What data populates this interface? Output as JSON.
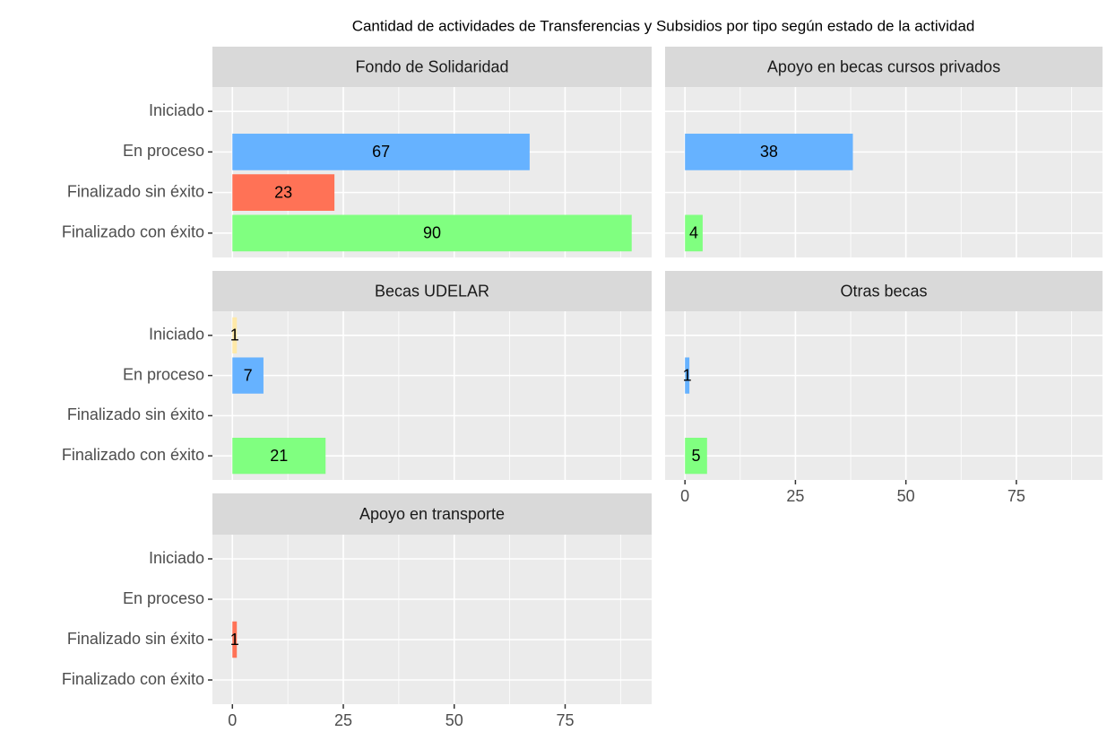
{
  "title": "Cantidad de actividades de Transferencias y Subsidios por tipo según estado de la actividad",
  "chart_data": [
    {
      "type": "bar",
      "title": "Fondo de Solidaridad",
      "categories": [
        "Iniciado",
        "En proceso",
        "Finalizado sin éxito",
        "Finalizado con éxito"
      ],
      "values": [
        null,
        67,
        23,
        90
      ],
      "colors": [
        "#FFE9A8",
        "#66B2FF",
        "#FF7256",
        "#80FF80"
      ],
      "xlim": [
        -4.5,
        94.5
      ],
      "xticks": [
        0,
        25,
        50,
        75
      ],
      "grid": true
    },
    {
      "type": "bar",
      "title": "Apoyo en becas cursos privados",
      "categories": [
        "Iniciado",
        "En proceso",
        "Finalizado sin éxito",
        "Finalizado con éxito"
      ],
      "values": [
        null,
        38,
        null,
        4
      ],
      "colors": [
        "#FFE9A8",
        "#66B2FF",
        "#FF7256",
        "#80FF80"
      ],
      "xlim": [
        -4.5,
        94.5
      ],
      "xticks": [
        0,
        25,
        50,
        75
      ],
      "grid": true
    },
    {
      "type": "bar",
      "title": "Becas UDELAR",
      "categories": [
        "Iniciado",
        "En proceso",
        "Finalizado sin éxito",
        "Finalizado con éxito"
      ],
      "values": [
        1,
        7,
        null,
        21
      ],
      "colors": [
        "#FFE9A8",
        "#66B2FF",
        "#FF7256",
        "#80FF80"
      ],
      "xlim": [
        -4.5,
        94.5
      ],
      "xticks": [
        0,
        25,
        50,
        75
      ],
      "grid": true
    },
    {
      "type": "bar",
      "title": "Otras becas",
      "categories": [
        "Iniciado",
        "En proceso",
        "Finalizado sin éxito",
        "Finalizado con éxito"
      ],
      "values": [
        null,
        1,
        null,
        5
      ],
      "colors": [
        "#FFE9A8",
        "#66B2FF",
        "#FF7256",
        "#80FF80"
      ],
      "xlim": [
        -4.5,
        94.5
      ],
      "xticks": [
        0,
        25,
        50,
        75
      ],
      "grid": true
    },
    {
      "type": "bar",
      "title": "Apoyo en transporte",
      "categories": [
        "Iniciado",
        "En proceso",
        "Finalizado sin éxito",
        "Finalizado con éxito"
      ],
      "values": [
        null,
        null,
        1,
        null
      ],
      "colors": [
        "#FFE9A8",
        "#66B2FF",
        "#FF7256",
        "#80FF80"
      ],
      "xlim": [
        -4.5,
        94.5
      ],
      "xticks": [
        0,
        25,
        50,
        75
      ],
      "grid": true
    }
  ]
}
